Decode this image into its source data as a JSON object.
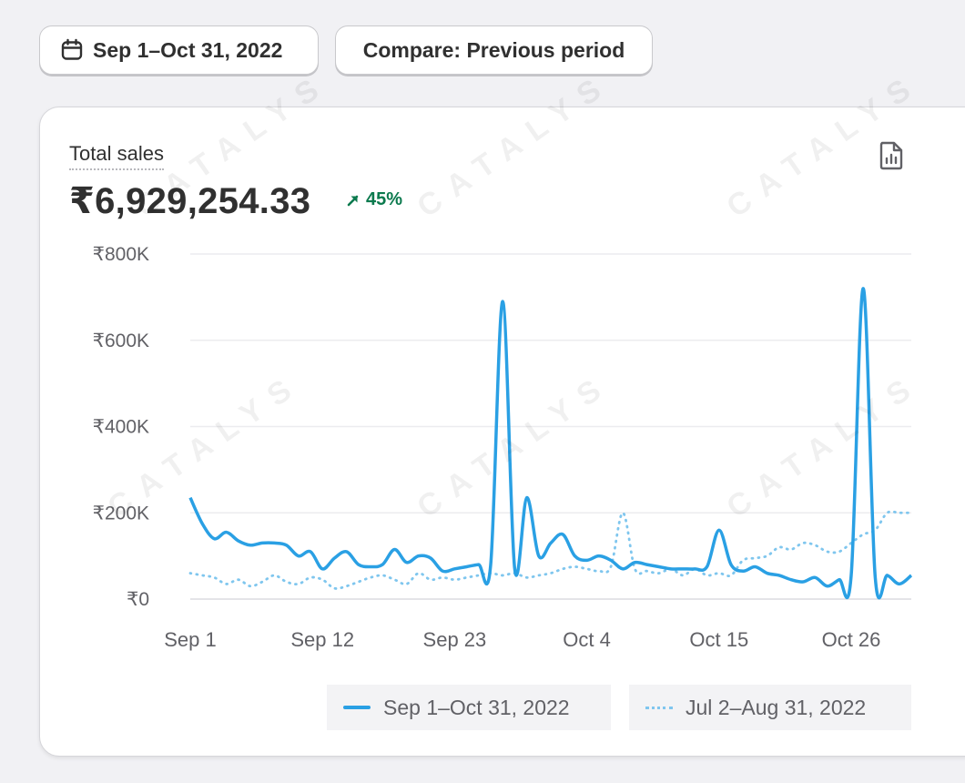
{
  "date_range": {
    "label": "Sep 1–Oct 31, 2022",
    "icon": "calendar-icon"
  },
  "compare": {
    "label": "Compare: Previous period"
  },
  "card": {
    "title": "Total sales",
    "value": "₹6,929,254.33",
    "delta": "45%",
    "delta_icon": "arrow-up-right-icon",
    "report_icon": "report-icon"
  },
  "watermark": "CATALYS",
  "colors": {
    "current": "#2aa0e4",
    "previous": "#7fc6ee",
    "delta": "#0c7a4e"
  },
  "chart_data": {
    "type": "line",
    "title": "Total sales",
    "y_ticks": [
      "₹800K",
      "₹600K",
      "₹400K",
      "₹200K",
      "₹0"
    ],
    "x_ticks": [
      "Sep 1",
      "Sep 12",
      "Sep 23",
      "Oct 4",
      "Oct 15",
      "Oct 26"
    ],
    "ylim": [
      0,
      800000
    ],
    "legend": [
      "Sep 1–Oct 31, 2022",
      "Jul 2–Aug 31, 2022"
    ],
    "series": [
      {
        "name": "Sep 1–Oct 31, 2022",
        "style": "solid",
        "values": [
          235000,
          175000,
          140000,
          155000,
          135000,
          125000,
          130000,
          130000,
          125000,
          100000,
          110000,
          70000,
          95000,
          110000,
          80000,
          75000,
          80000,
          115000,
          85000,
          100000,
          95000,
          65000,
          70000,
          75000,
          80000,
          80000,
          690000,
          70000,
          235000,
          100000,
          130000,
          150000,
          100000,
          90000,
          100000,
          90000,
          70000,
          85000,
          80000,
          75000,
          70000,
          70000,
          70000,
          75000,
          160000,
          80000,
          65000,
          75000,
          60000,
          55000,
          45000,
          40000,
          50000,
          30000,
          45000,
          55000,
          720000,
          50000,
          55000,
          35000,
          55000
        ]
      },
      {
        "name": "Jul 2–Aug 31, 2022",
        "style": "dotted",
        "values": [
          60000,
          55000,
          50000,
          35000,
          45000,
          30000,
          40000,
          55000,
          40000,
          35000,
          50000,
          45000,
          25000,
          30000,
          40000,
          50000,
          55000,
          45000,
          35000,
          60000,
          45000,
          50000,
          45000,
          50000,
          55000,
          60000,
          55000,
          60000,
          50000,
          55000,
          60000,
          70000,
          75000,
          70000,
          65000,
          75000,
          200000,
          70000,
          65000,
          60000,
          70000,
          55000,
          70000,
          55000,
          60000,
          55000,
          90000,
          95000,
          100000,
          120000,
          115000,
          130000,
          125000,
          110000,
          110000,
          130000,
          150000,
          160000,
          200000,
          200000,
          200000
        ]
      }
    ]
  }
}
